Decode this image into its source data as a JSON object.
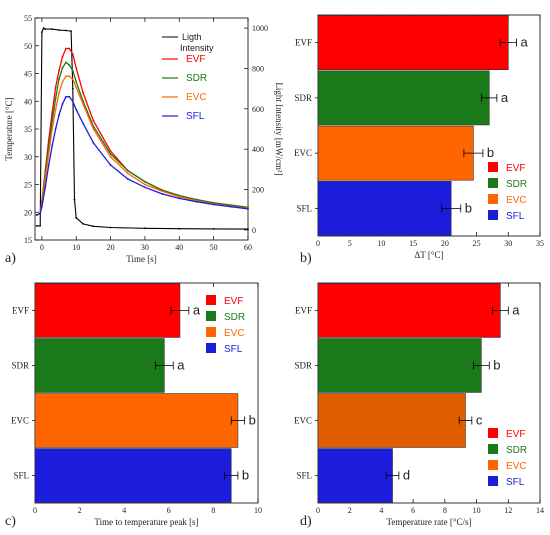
{
  "colors": {
    "EVF": "#ff0000",
    "SDR": "#1a7a1a",
    "EVC": "#ff6600",
    "SFL": "#1c1cdc",
    "light": "#000000"
  },
  "chart_data": [
    {
      "panel": "a)",
      "type": "line",
      "xlabel": "Time [s]",
      "ylabel": "Temperature [°C]",
      "y2label": "Light Intensity [mW/cm²]",
      "xlim": [
        -2,
        60
      ],
      "ylim": [
        15,
        55
      ],
      "y2lim": [
        -50,
        1050
      ],
      "xticks": [
        "0",
        "10",
        "20",
        "30",
        "40",
        "50",
        "60"
      ],
      "yticks": [
        "15",
        "20",
        "25",
        "30",
        "35",
        "40",
        "45",
        "50",
        "55"
      ],
      "y2ticks": [
        "0",
        "200",
        "400",
        "600",
        "800",
        "1000"
      ],
      "legend": [
        "Ligth\nIntensity",
        "EVF",
        "SDR",
        "EVC",
        "SFL"
      ],
      "series": [
        {
          "name": "Ligth Intensity",
          "axis": "right",
          "x": [
            -1.5,
            -0.5,
            0,
            0.5,
            1,
            3,
            5,
            7,
            8.5,
            9,
            9.5,
            10,
            12,
            15,
            20,
            30,
            40,
            50,
            60
          ],
          "y": [
            20,
            20,
            980,
            1000,
            995,
            995,
            990,
            988,
            985,
            700,
            150,
            60,
            30,
            18,
            12,
            8,
            6,
            5,
            4
          ]
        },
        {
          "name": "EVF",
          "axis": "left",
          "x": [
            -1.5,
            -0.5,
            0,
            1,
            2,
            3,
            4,
            5,
            6,
            7,
            8,
            9,
            10,
            12,
            15,
            20,
            25,
            30,
            35,
            40,
            45,
            50,
            55,
            60
          ],
          "y": [
            19.5,
            19.8,
            22,
            27.5,
            33,
            38,
            42.5,
            45.5,
            48,
            49.5,
            49.5,
            48.5,
            46,
            41.5,
            36.5,
            31,
            27.5,
            25.5,
            24,
            23,
            22.2,
            21.6,
            21.2,
            20.8
          ]
        },
        {
          "name": "SDR",
          "axis": "left",
          "x": [
            -1.5,
            -0.5,
            0,
            1,
            2,
            3,
            4,
            5,
            6,
            7,
            8,
            9,
            10,
            12,
            15,
            20,
            25,
            30,
            35,
            40,
            45,
            50,
            55,
            60
          ],
          "y": [
            19.5,
            19.8,
            22,
            27,
            32,
            36.5,
            40.5,
            44,
            46,
            47,
            46.5,
            45.5,
            43.5,
            40,
            35.5,
            30.5,
            27.5,
            25.5,
            24,
            23,
            22.3,
            21.7,
            21.3,
            20.9
          ]
        },
        {
          "name": "EVC",
          "axis": "left",
          "x": [
            -1.5,
            -0.5,
            0,
            1,
            2,
            3,
            4,
            5,
            6,
            7,
            8,
            9,
            10,
            12,
            15,
            20,
            25,
            30,
            35,
            40,
            45,
            50,
            55,
            60
          ],
          "y": [
            19.5,
            19.8,
            21.5,
            26,
            30.5,
            35,
            38.5,
            41.5,
            43.5,
            44.5,
            44.5,
            44,
            42.5,
            39.5,
            35,
            30,
            27,
            25,
            23.8,
            22.8,
            22.1,
            21.5,
            21.1,
            20.7
          ]
        },
        {
          "name": "SFL",
          "axis": "left",
          "x": [
            -1.5,
            -0.5,
            0,
            1,
            2,
            3,
            4,
            5,
            6,
            7,
            8,
            9,
            10,
            12,
            15,
            20,
            25,
            30,
            35,
            40,
            45,
            50,
            55,
            60
          ],
          "y": [
            19.5,
            19.8,
            21,
            24.5,
            28.5,
            32,
            35,
            37.5,
            39.5,
            40.8,
            40.8,
            40,
            38.5,
            36,
            32.5,
            28.5,
            26,
            24.5,
            23.3,
            22.5,
            21.9,
            21.4,
            21,
            20.6
          ]
        }
      ]
    },
    {
      "panel": "b)",
      "type": "bar",
      "orientation": "horizontal",
      "xlabel": "ΔT [°C]",
      "xlim": [
        0,
        35
      ],
      "xticks": [
        "0",
        "5",
        "10",
        "15",
        "20",
        "25",
        "30",
        "35"
      ],
      "categories": [
        "EVF",
        "SDR",
        "EVC",
        "SFL"
      ],
      "values": [
        30,
        27,
        24.5,
        21
      ],
      "errors": [
        1.3,
        1.2,
        1.5,
        1.5
      ],
      "letters": [
        "a",
        "a",
        "b",
        "b"
      ],
      "legend": [
        "EVF",
        "SDR",
        "EVC",
        "SFL"
      ]
    },
    {
      "panel": "c)",
      "type": "bar",
      "orientation": "horizontal",
      "xlabel": "Time to temperature peak [s]",
      "xlim": [
        0,
        10
      ],
      "xticks": [
        "0",
        "2",
        "4",
        "6",
        "8",
        "10"
      ],
      "categories": [
        "EVF",
        "SDR",
        "EVC",
        "SFL"
      ],
      "values": [
        6.5,
        5.8,
        9.1,
        8.8
      ],
      "errors": [
        0.4,
        0.4,
        0.3,
        0.3
      ],
      "letters": [
        "a",
        "a",
        "b",
        "b"
      ],
      "legend": [
        "EVF",
        "SDR",
        "EVC",
        "SFL"
      ]
    },
    {
      "panel": "d)",
      "type": "bar",
      "orientation": "horizontal",
      "xlabel": "Temperature rate [°C/s]",
      "xlim": [
        0,
        14
      ],
      "xticks": [
        "0",
        "2",
        "4",
        "6",
        "8",
        "10",
        "12",
        "14"
      ],
      "categories": [
        "EVF",
        "SDR",
        "EVC",
        "SFL"
      ],
      "values": [
        11.5,
        10.3,
        9.3,
        4.7
      ],
      "errors": [
        0.5,
        0.5,
        0.4,
        0.4
      ],
      "letters": [
        "a",
        "b",
        "c",
        "d"
      ],
      "legend": [
        "EVF",
        "SDR",
        "EVC",
        "SFL"
      ],
      "bar_colors_override": {
        "EVC": "#e05e00"
      }
    }
  ]
}
